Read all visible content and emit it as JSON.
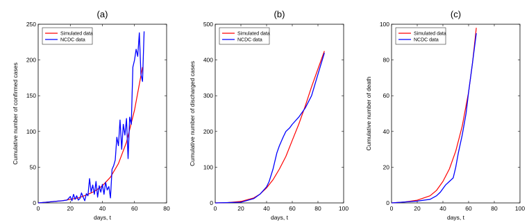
{
  "chart_data": [
    {
      "type": "line",
      "title": "(a)",
      "xlabel": "days, t",
      "ylabel": "Cumulative number of confirmed cases",
      "xlim": [
        0,
        80
      ],
      "ylim": [
        0,
        250
      ],
      "xticks": [
        0,
        20,
        40,
        60,
        80
      ],
      "yticks": [
        0,
        50,
        100,
        150,
        200,
        250
      ],
      "legend": {
        "position": "top-left"
      },
      "series": [
        {
          "name": "Simulated data",
          "color": "#ff0000",
          "x": [
            0,
            5,
            10,
            15,
            20,
            25,
            30,
            35,
            40,
            45,
            50,
            55,
            60,
            65
          ],
          "y": [
            0,
            1,
            2,
            3,
            5,
            7,
            11,
            16,
            24,
            36,
            55,
            85,
            130,
            190
          ]
        },
        {
          "name": "NCDC data",
          "color": "#0000ff",
          "x": [
            0,
            5,
            10,
            15,
            18,
            20,
            21,
            22,
            23,
            24,
            25,
            26,
            27,
            28,
            29,
            30,
            31,
            32,
            33,
            34,
            35,
            36,
            37,
            38,
            39,
            40,
            41,
            42,
            43,
            44,
            45,
            46,
            47,
            48,
            49,
            50,
            51,
            52,
            53,
            54,
            55,
            56,
            57,
            58,
            59,
            60,
            61,
            62,
            63,
            64,
            65,
            66
          ],
          "y": [
            0,
            1,
            2,
            3,
            4,
            9,
            3,
            12,
            5,
            10,
            4,
            6,
            14,
            8,
            3,
            13,
            10,
            34,
            15,
            25,
            12,
            30,
            8,
            24,
            15,
            26,
            12,
            29,
            18,
            23,
            7,
            47,
            52,
            60,
            92,
            80,
            116,
            75,
            110,
            95,
            118,
            62,
            120,
            110,
            190,
            200,
            215,
            205,
            238,
            180,
            170,
            240
          ]
        }
      ]
    },
    {
      "type": "line",
      "title": "(b)",
      "xlabel": "days, t",
      "ylabel": "Cumulative number of discharged cases",
      "xlim": [
        0,
        100
      ],
      "ylim": [
        0,
        500
      ],
      "xticks": [
        0,
        20,
        40,
        60,
        80,
        100
      ],
      "yticks": [
        0,
        100,
        200,
        300,
        400,
        500
      ],
      "legend": {
        "position": "top-left"
      },
      "series": [
        {
          "name": "Simulated data",
          "color": "#ff0000",
          "x": [
            0,
            10,
            20,
            30,
            35,
            40,
            45,
            50,
            55,
            60,
            65,
            70,
            75,
            80,
            85
          ],
          "y": [
            0,
            1,
            4,
            14,
            25,
            42,
            65,
            95,
            130,
            175,
            220,
            270,
            325,
            375,
            425
          ]
        },
        {
          "name": "NCDC data",
          "color": "#0000ff",
          "x": [
            0,
            20,
            30,
            35,
            40,
            42,
            45,
            48,
            50,
            53,
            55,
            58,
            60,
            65,
            70,
            75,
            80,
            85
          ],
          "y": [
            0,
            2,
            12,
            25,
            45,
            60,
            95,
            140,
            160,
            185,
            200,
            210,
            220,
            240,
            265,
            300,
            360,
            420
          ]
        }
      ]
    },
    {
      "type": "line",
      "title": "(c)",
      "xlabel": "days, t",
      "ylabel": "Cumulative number of death",
      "xlim": [
        0,
        100
      ],
      "ylim": [
        0,
        100
      ],
      "xticks": [
        0,
        20,
        40,
        60,
        80,
        100
      ],
      "yticks": [
        0,
        20,
        40,
        60,
        80,
        100
      ],
      "legend": {
        "position": "top-left"
      },
      "series": [
        {
          "name": "Simulated data",
          "color": "#ff0000",
          "x": [
            0,
            10,
            20,
            30,
            35,
            40,
            45,
            50,
            55,
            60,
            63,
            66
          ],
          "y": [
            0,
            0.5,
            1.5,
            4,
            7,
            12,
            19,
            29,
            43,
            62,
            78,
            98
          ]
        },
        {
          "name": "NCDC data",
          "color": "#0000ff",
          "x": [
            0,
            20,
            30,
            35,
            38,
            40,
            42,
            45,
            48,
            50,
            52,
            55,
            58,
            60,
            63,
            66
          ],
          "y": [
            0,
            1,
            2,
            4,
            6,
            8,
            10,
            12,
            14,
            20,
            28,
            38,
            50,
            62,
            78,
            95
          ]
        }
      ]
    }
  ]
}
